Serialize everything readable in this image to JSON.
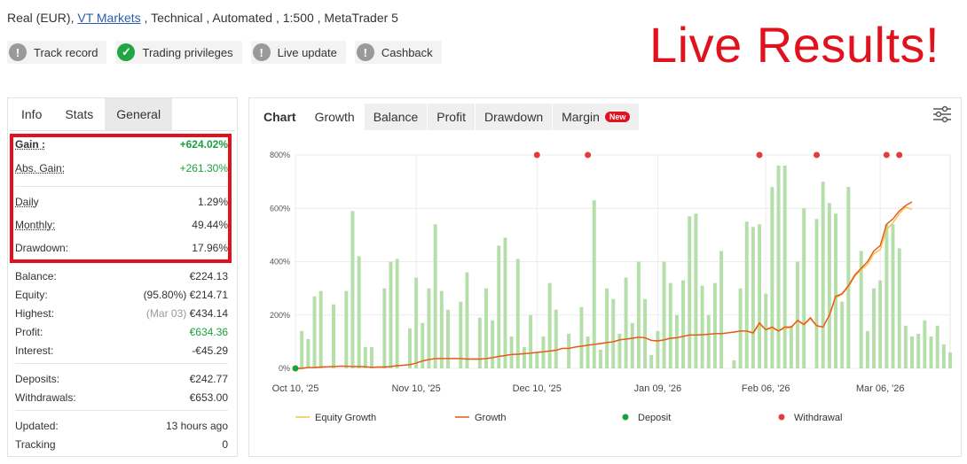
{
  "account": {
    "prefix": "Real (EUR), ",
    "broker": "VT Markets",
    "suffix": " , Technical , Automated , 1:500 , MetaTrader 5"
  },
  "badges": [
    {
      "label": "Track record",
      "icon": "exclamation-icon",
      "status": "grey"
    },
    {
      "label": "Trading privileges",
      "icon": "check-icon",
      "status": "green"
    },
    {
      "label": "Live update",
      "icon": "exclamation-icon",
      "status": "grey"
    },
    {
      "label": "Cashback",
      "icon": "exclamation-icon",
      "status": "grey"
    }
  ],
  "overlay_text": "Live Results!",
  "left_tabs": [
    "Info",
    "Stats",
    "General"
  ],
  "stats": {
    "gain": {
      "label": "Gain :",
      "value": "+624.02%"
    },
    "abs_gain": {
      "label": "Abs. Gain:",
      "value": "+261.30%"
    },
    "daily": {
      "label": "Daily",
      "value": "1.29%"
    },
    "monthly": {
      "label": "Monthly:",
      "value": "49.44%"
    },
    "drawdown": {
      "label": "Drawdown:",
      "value": "17.96%"
    },
    "balance": {
      "label": "Balance:",
      "value": "€224.13"
    },
    "equity": {
      "label": "Equity:",
      "note": "(95.80%)",
      "value": "€214.71"
    },
    "highest": {
      "label": "Highest:",
      "note": "(Mar 03)",
      "value": "€434.14"
    },
    "profit": {
      "label": "Profit:",
      "value": "€634.36"
    },
    "interest": {
      "label": "Interest:",
      "value": "-€45.29"
    },
    "deposits": {
      "label": "Deposits:",
      "value": "€242.77"
    },
    "withdrawals": {
      "label": "Withdrawals:",
      "value": "€653.00"
    },
    "updated": {
      "label": "Updated:",
      "value": "13 hours ago"
    },
    "tracking": {
      "label": "Tracking",
      "value": "0"
    }
  },
  "chart_tabs": {
    "label": "Chart",
    "tabs": [
      "Growth",
      "Balance",
      "Profit",
      "Drawdown",
      "Margin"
    ],
    "active": "Growth",
    "new_badge": "New"
  },
  "colors": {
    "bar": "#b5dfa8",
    "growth": "#e8541c",
    "equity": "#f5c242",
    "deposit": "#17a33a",
    "withdrawal": "#e83a3a",
    "accent_red": "#e0121d"
  },
  "chart_data": {
    "type": "bar+line",
    "ylim": [
      0,
      800
    ],
    "yticks": [
      "0%",
      "200%",
      "400%",
      "600%",
      "800%"
    ],
    "xtick_labels": [
      "Oct 10, '25",
      "Nov 10, '25",
      "Dec 10, '25",
      "Jan 09, '26",
      "Feb 06, '26",
      "Mar 06, '26"
    ],
    "xtick_positions": [
      0,
      19,
      38,
      57,
      74,
      92
    ],
    "legend": [
      {
        "name": "Equity Growth",
        "kind": "line",
        "color": "#f5c242"
      },
      {
        "name": "Growth",
        "kind": "line",
        "color": "#e8541c"
      },
      {
        "name": "Deposit",
        "kind": "dot",
        "color": "#17a33a"
      },
      {
        "name": "Withdrawal",
        "kind": "dot",
        "color": "#e83a3a"
      }
    ],
    "bars": [
      0,
      140,
      110,
      270,
      290,
      0,
      240,
      0,
      290,
      590,
      420,
      80,
      80,
      0,
      300,
      400,
      410,
      0,
      150,
      340,
      170,
      300,
      540,
      290,
      220,
      0,
      250,
      360,
      0,
      190,
      300,
      180,
      460,
      490,
      120,
      410,
      80,
      200,
      60,
      120,
      320,
      220,
      0,
      130,
      0,
      230,
      120,
      630,
      70,
      300,
      260,
      130,
      340,
      170,
      400,
      260,
      50,
      140,
      400,
      320,
      200,
      330,
      570,
      580,
      310,
      200,
      320,
      440,
      0,
      30,
      300,
      550,
      530,
      540,
      280,
      680,
      760,
      760,
      160,
      400,
      600,
      0,
      560,
      700,
      620,
      580,
      250,
      680,
      0,
      440,
      140,
      300,
      330,
      540,
      540,
      450,
      160,
      120,
      130,
      180,
      120,
      160,
      90,
      60
    ],
    "growth": [
      0,
      0,
      3,
      3,
      5,
      6,
      7,
      8,
      8,
      7,
      7,
      6,
      4,
      5,
      5,
      7,
      10,
      12,
      14,
      20,
      28,
      33,
      37,
      37,
      37,
      37,
      37,
      35,
      35,
      35,
      37,
      40,
      45,
      48,
      52,
      53,
      55,
      57,
      60,
      62,
      65,
      68,
      75,
      75,
      80,
      83,
      87,
      90,
      93,
      97,
      100,
      107,
      110,
      113,
      117,
      115,
      105,
      103,
      107,
      113,
      115,
      120,
      125,
      125,
      126,
      128,
      130,
      130,
      133,
      136,
      140,
      140,
      133,
      170,
      145,
      155,
      140,
      155,
      155,
      180,
      165,
      190,
      160,
      155,
      200,
      270,
      280,
      310,
      350,
      375,
      400,
      440,
      460,
      540,
      560,
      590,
      610,
      624
    ],
    "equity": [
      0,
      0,
      3,
      3,
      5,
      6,
      7,
      8,
      8,
      7,
      7,
      6,
      4,
      5,
      5,
      7,
      10,
      12,
      14,
      20,
      28,
      33,
      37,
      37,
      37,
      37,
      37,
      35,
      35,
      35,
      37,
      40,
      45,
      48,
      52,
      53,
      55,
      57,
      60,
      62,
      65,
      68,
      75,
      75,
      80,
      83,
      87,
      90,
      93,
      97,
      100,
      107,
      110,
      113,
      117,
      115,
      105,
      103,
      107,
      113,
      115,
      120,
      125,
      125,
      126,
      128,
      130,
      130,
      133,
      136,
      140,
      140,
      130,
      165,
      145,
      150,
      140,
      150,
      152,
      178,
      162,
      186,
      158,
      155,
      198,
      265,
      278,
      305,
      345,
      370,
      390,
      430,
      445,
      520,
      545,
      580,
      605,
      596
    ],
    "deposits_at": [
      0
    ],
    "withdrawals_at": [
      38,
      46,
      73,
      82,
      93,
      95
    ]
  }
}
